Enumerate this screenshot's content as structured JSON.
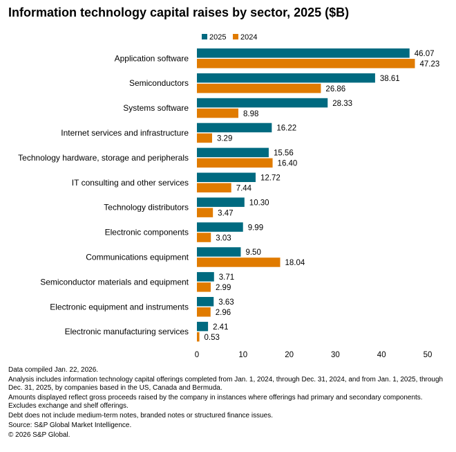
{
  "chart_data": {
    "type": "bar",
    "orientation": "horizontal",
    "title": "Information technology capital raises by sector, 2025 ($B)",
    "categories": [
      "Application software",
      "Semiconductors",
      "Systems software",
      "Internet services and infrastructure",
      "Technology hardware, storage and peripherals",
      "IT consulting and other services",
      "Technology distributors",
      "Electronic components",
      "Communications equipment",
      "Semiconductor materials and equipment",
      "Electronic equipment and instruments",
      "Electronic manufacturing services"
    ],
    "series": [
      {
        "name": "2025",
        "color": "#006a80",
        "values": [
          46.07,
          38.61,
          28.33,
          16.22,
          15.56,
          12.72,
          10.3,
          9.99,
          9.5,
          3.71,
          3.63,
          2.41
        ],
        "labels": [
          "46.07",
          "38.61",
          "28.33",
          "16.22",
          "15.56",
          "12.72",
          "10.30",
          "9.99",
          "9.50",
          "3.71",
          "3.63",
          "2.41"
        ]
      },
      {
        "name": "2024",
        "color": "#e07b00",
        "values": [
          47.23,
          26.86,
          8.98,
          3.29,
          16.4,
          7.44,
          3.47,
          3.03,
          18.04,
          2.99,
          2.96,
          0.53
        ],
        "labels": [
          "47.23",
          "26.86",
          "8.98",
          "3.29",
          "16.40",
          "7.44",
          "3.47",
          "3.03",
          "18.04",
          "2.99",
          "2.96",
          "0.53"
        ]
      }
    ],
    "xlim": [
      0,
      50
    ],
    "xticks": [
      0,
      10,
      20,
      30,
      40,
      50
    ],
    "xlabel": "",
    "ylabel": "",
    "grid": false,
    "legend": "top-center"
  },
  "notes": [
    "Data compiled Jan. 22, 2026.",
    "Analysis includes information technology capital offerings completed from Jan. 1, 2024, through Dec. 31, 2024, and from Jan. 1, 2025, through Dec. 31, 2025, by companies based in the US, Canada and Bermuda.",
    "Amounts displayed reflect gross proceeds raised by the company in instances where offerings had primary and secondary components. Excludes exchange and shelf offerings.",
    "Debt does not include medium-term notes, branded notes or structured finance issues.",
    "Source: S&P Global Market Intelligence.",
    "© 2026 S&P Global."
  ]
}
